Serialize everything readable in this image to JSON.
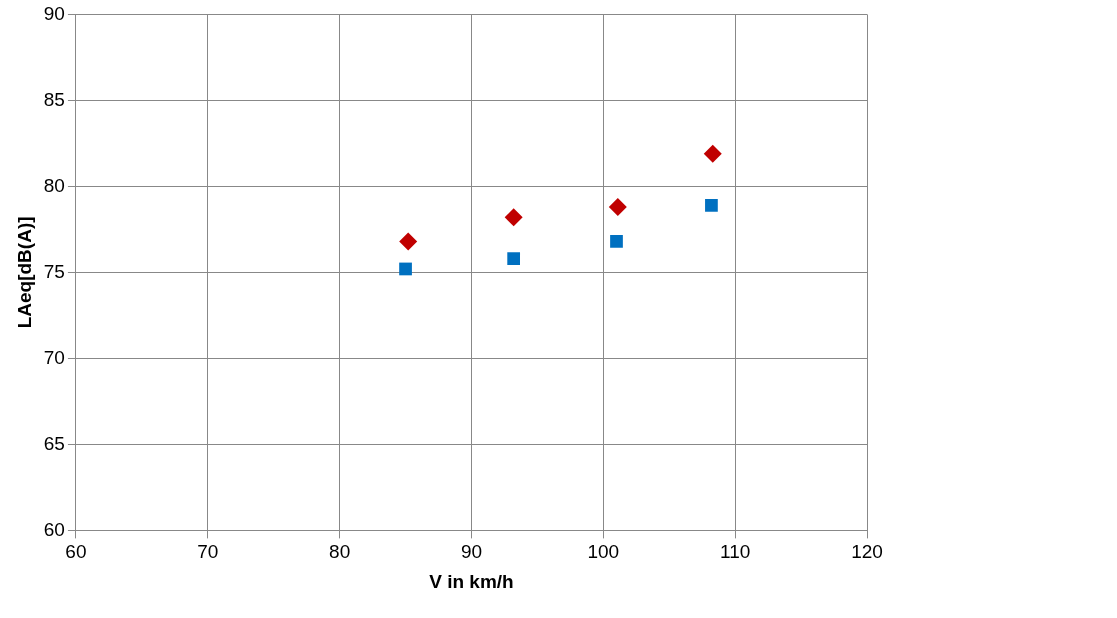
{
  "chart_data": {
    "type": "scatter",
    "xlabel": "V in km/h",
    "ylabel": "LAeq[dB(A)]",
    "xlim": [
      60,
      120
    ],
    "xticks": [
      60,
      70,
      80,
      90,
      100,
      110,
      120
    ],
    "ylim": [
      60,
      90
    ],
    "yticks": [
      60,
      65,
      70,
      75,
      80,
      85,
      90
    ],
    "grid": true,
    "series": [
      {
        "color": "#c00000",
        "marker": "diamond",
        "x": [
          85.2,
          93.2,
          101.1,
          108.3
        ],
        "values": [
          76.8,
          78.2,
          78.8,
          81.9
        ]
      },
      {
        "color": "#0070c0",
        "marker": "square",
        "x": [
          85.0,
          93.2,
          101.0,
          108.2
        ],
        "values": [
          75.2,
          75.8,
          76.8,
          78.9
        ]
      }
    ]
  }
}
